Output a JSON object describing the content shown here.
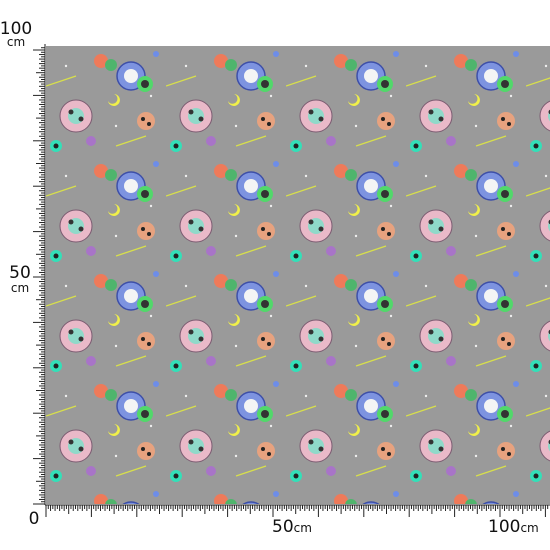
{
  "ruler": {
    "top_label": {
      "number": "100",
      "unit": "cm"
    },
    "middle_label": {
      "number": "50",
      "unit": "cm"
    },
    "origin": "0",
    "bottom_labels": [
      {
        "number": "50",
        "unit": "cm"
      },
      {
        "number": "100",
        "unit": "cm"
      }
    ]
  }
}
